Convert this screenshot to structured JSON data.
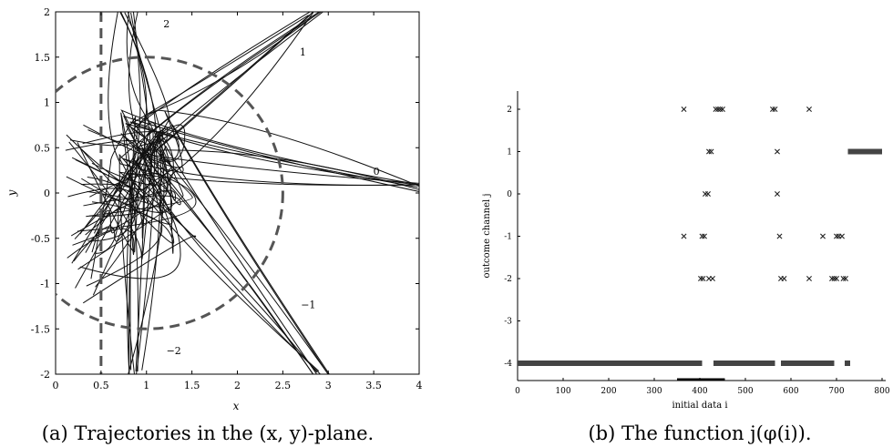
{
  "chart_data": [
    {
      "type": "line",
      "caption": "(a) Trajectories in the (x, y)-plane.",
      "xlabel": "x",
      "ylabel": "y",
      "xlim": [
        0,
        4
      ],
      "ylim": [
        -2,
        2
      ],
      "xticks": [
        "0",
        "0.5",
        "1",
        "1.5",
        "2",
        "2.5",
        "3",
        "3.5",
        "4"
      ],
      "yticks": [
        "-2",
        "-1.5",
        "-1",
        "-0.5",
        "0",
        "0.5",
        "1",
        "1.5",
        "2"
      ],
      "channel_labels": [
        {
          "text": "2",
          "x": 1.22,
          "y": 1.83
        },
        {
          "text": "1",
          "x": 2.72,
          "y": 1.52
        },
        {
          "text": "0",
          "x": 3.53,
          "y": 0.2
        },
        {
          "text": "−1",
          "x": 2.78,
          "y": -1.27
        },
        {
          "text": "−2",
          "x": 1.3,
          "y": -1.78
        }
      ],
      "reference_circle": {
        "cx": 1,
        "cy": 0,
        "r": 1.5,
        "style": "dashed"
      },
      "reference_line": {
        "x": 0.5,
        "style": "dashed"
      },
      "core_point": {
        "x": 1.0,
        "y": 0.6
      },
      "trajectory_bundles": [
        {
          "channel": "2",
          "end": [
            0.78,
            2.0
          ]
        },
        {
          "channel": "1",
          "end": [
            2.9,
            2.0
          ]
        },
        {
          "channel": "0",
          "end": [
            4.0,
            0.05
          ]
        },
        {
          "channel": "−1",
          "end": [
            2.95,
            -2.0
          ]
        },
        {
          "channel": "−2",
          "end": [
            0.9,
            -2.0
          ]
        }
      ]
    },
    {
      "type": "scatter",
      "caption": "(b) The function j(φ(i)).",
      "xlabel": "initial data i",
      "ylabel": "outcome channel j",
      "xlim": [
        0,
        800
      ],
      "ylim": [
        -4.2,
        2.4
      ],
      "xticks": [
        "0",
        "100",
        "200",
        "300",
        "400",
        "500",
        "600",
        "700",
        "800"
      ],
      "yticks": [
        "-4",
        "-3",
        "-2",
        "-1",
        "0",
        "1",
        "2"
      ],
      "series": [
        {
          "points": [
            [
              365,
              2
            ],
            [
              435,
              2
            ],
            [
              440,
              2
            ],
            [
              445,
              2
            ],
            [
              450,
              2
            ],
            [
              560,
              2
            ],
            [
              565,
              2
            ],
            [
              640,
              2
            ],
            [
              420,
              1
            ],
            [
              425,
              1
            ],
            [
              570,
              1
            ],
            [
              412,
              0
            ],
            [
              418,
              0
            ],
            [
              570,
              0
            ],
            [
              365,
              -1
            ],
            [
              405,
              -1
            ],
            [
              410,
              -1
            ],
            [
              575,
              -1
            ],
            [
              670,
              -1
            ],
            [
              700,
              -1
            ],
            [
              705,
              -1
            ],
            [
              712,
              -1
            ],
            [
              402,
              -2
            ],
            [
              407,
              -2
            ],
            [
              420,
              -2
            ],
            [
              428,
              -2
            ],
            [
              578,
              -2
            ],
            [
              585,
              -2
            ],
            [
              640,
              -2
            ],
            [
              690,
              -2
            ],
            [
              695,
              -2
            ],
            [
              700,
              -2
            ],
            [
              715,
              -2
            ],
            [
              720,
              -2
            ]
          ]
        }
      ],
      "runs": [
        {
          "j": 1,
          "from": 725,
          "to": 800
        },
        {
          "j": -4,
          "from": 0,
          "to": 405
        },
        {
          "j": -4,
          "from": 430,
          "to": 565
        },
        {
          "j": -4,
          "from": 578,
          "to": 695
        },
        {
          "j": -4,
          "from": 718,
          "to": 730
        }
      ],
      "axis_segment": {
        "from": 350,
        "to": 455
      }
    }
  ]
}
